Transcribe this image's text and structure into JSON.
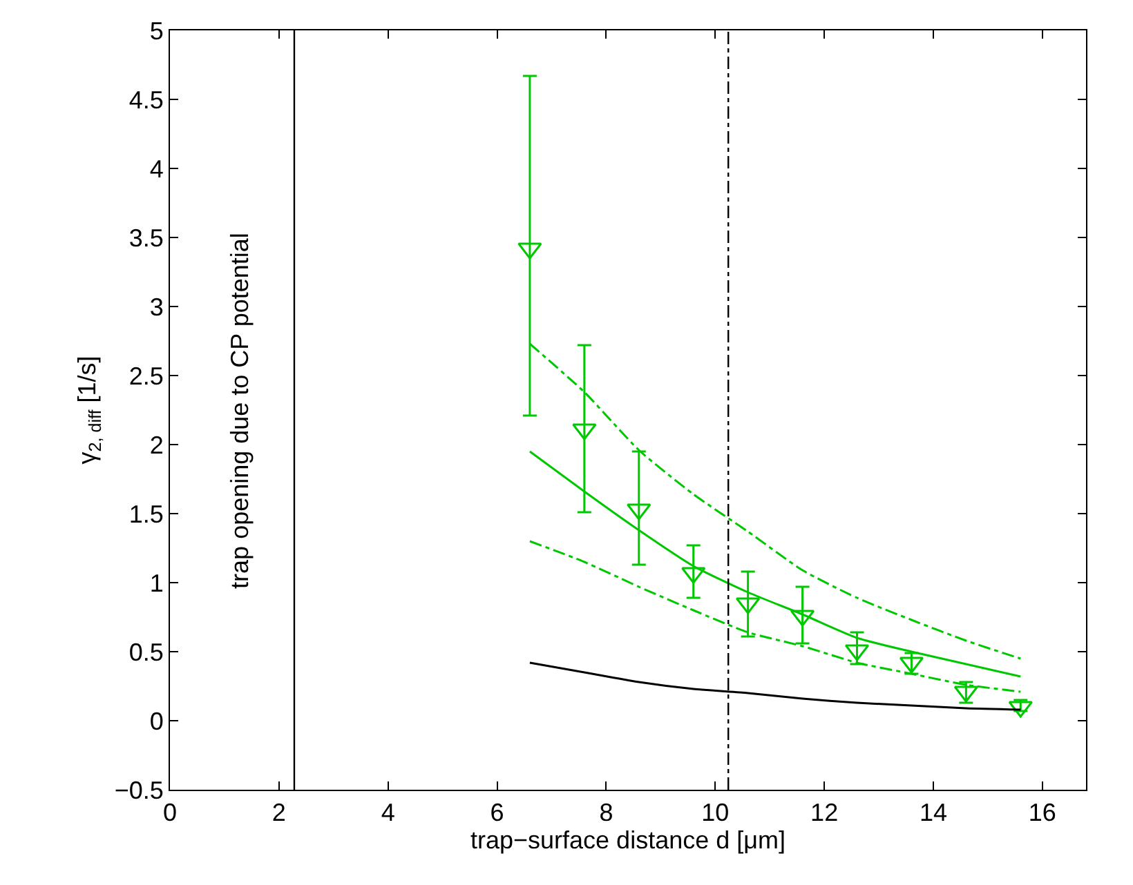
{
  "chart_data": {
    "type": "scatter",
    "xlabel": "trap−surface distance d [μm]",
    "ylabel": "γ$_{2, diff}$ [1/s]",
    "annotations": [
      "trap opening due to CP potential"
    ],
    "x": [
      6.6,
      7.6,
      8.6,
      9.6,
      10.6,
      11.6,
      12.6,
      13.6,
      14.6,
      15.6
    ],
    "series": [
      {
        "color": "#00c800",
        "marker": "triangle",
        "values": [
          3.42,
          2.11,
          1.53,
          1.07,
          0.85,
          0.76,
          0.51,
          0.42,
          0.21,
          0.1
        ],
        "errors": [
          [
            2.21,
            4.67
          ],
          [
            1.51,
            2.72
          ],
          [
            1.13,
            1.95
          ],
          [
            0.89,
            1.27
          ],
          [
            0.61,
            1.08
          ],
          [
            0.56,
            0.97
          ],
          [
            0.41,
            0.64
          ],
          [
            0.34,
            0.49
          ],
          [
            0.13,
            0.28
          ],
          [
            0.07,
            0.15
          ]
        ]
      },
      {
        "type": "line",
        "color": "#00c800",
        "line_style": "solid",
        "values": [
          1.95,
          1.66,
          1.38,
          1.12,
          0.93,
          0.77,
          0.6,
          0.5,
          0.41,
          0.32
        ]
      },
      {
        "type": "line",
        "color": "#00c800",
        "line_style": "dashed",
        "values": [
          2.73,
          2.38,
          1.96,
          1.64,
          1.37,
          1.09,
          0.89,
          0.73,
          0.58,
          0.45
        ]
      },
      {
        "type": "line",
        "color": "#00c800",
        "line_style": "dashed",
        "values": [
          1.3,
          1.15,
          0.97,
          0.8,
          0.64,
          0.54,
          0.42,
          0.34,
          0.26,
          0.21
        ]
      },
      {
        "type": "line",
        "color": "#000000",
        "line_style": "solid",
        "values": [
          0.42,
          0.35,
          0.28,
          0.23,
          0.2,
          0.16,
          0.13,
          0.11,
          0.09,
          0.08
        ]
      }
    ],
    "ref_lines": [
      {
        "axis": "x",
        "value": 2.28,
        "color": "#000000",
        "line_style": "solid"
      },
      {
        "axis": "x",
        "value": 10.24,
        "color": "#000000",
        "line_style": "dashed"
      }
    ],
    "xlim": [
      0,
      16.8
    ],
    "xticks": [
      0,
      2,
      4,
      6,
      8,
      10,
      12,
      14,
      16
    ],
    "ylim": [
      -0.5,
      5
    ],
    "yticks": [
      {
        "value": -0.5,
        "label": "−0.5"
      },
      0,
      0.5,
      1,
      1.5,
      2,
      2.5,
      3,
      3.5,
      4,
      4.5,
      5
    ]
  }
}
